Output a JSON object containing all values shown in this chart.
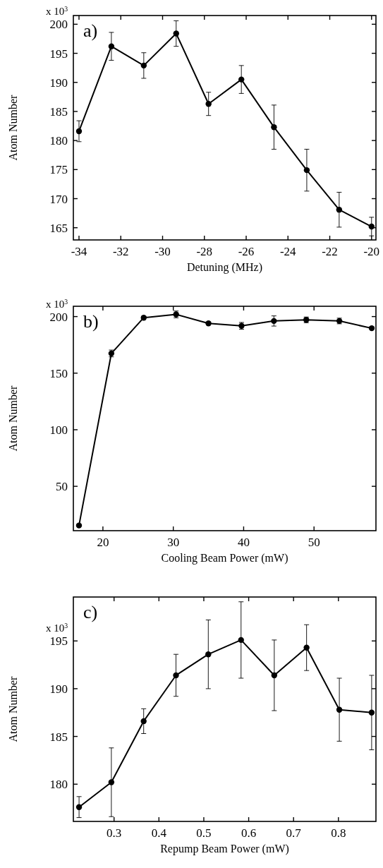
{
  "chart_data": [
    {
      "type": "line",
      "xlabel": "Detuning (MHz)",
      "ylabel": "Atom Number",
      "annotations": [
        "a)",
        "x 10$^{3}$"
      ],
      "marker": "circle",
      "line_style": "solid",
      "grid": false,
      "xlim": [
        -34.27,
        -19.79
      ],
      "ylim": [
        162.9,
        201.5
      ],
      "xticks": [
        -34,
        -32,
        -30,
        -28,
        -26,
        -24,
        -22,
        -20
      ],
      "yticks": [
        165,
        170,
        175,
        180,
        185,
        190,
        195,
        200
      ],
      "series": [
        {
          "color": "#000000",
          "x": [
            -34,
            -32.45,
            -30.9,
            -29.35,
            -27.8,
            -26.23,
            -24.67,
            -23.1,
            -21.55,
            -20
          ],
          "values": [
            181.6,
            196.2,
            192.9,
            198.4,
            186.3,
            190.5,
            182.3,
            174.9,
            168.1,
            165.2
          ],
          "errors": [
            1.8,
            2.4,
            2.2,
            2.2,
            2.0,
            2.4,
            3.8,
            3.6,
            3.0,
            1.6
          ]
        }
      ]
    },
    {
      "type": "line",
      "xlabel": "Cooling Beam Power (mW)",
      "ylabel": "Atom Number",
      "annotations": [
        "b)",
        "x 10$^{3}$"
      ],
      "marker": "circle",
      "line_style": "solid",
      "grid": false,
      "xlim": [
        15.8,
        58.8
      ],
      "ylim": [
        10.8,
        209.1
      ],
      "xticks": [
        20,
        30,
        40,
        50
      ],
      "yticks": [
        50,
        100,
        150,
        200
      ],
      "series": [
        {
          "color": "#000000",
          "x": [
            16.6,
            21.2,
            25.8,
            30.4,
            35.0,
            39.7,
            44.3,
            48.9,
            53.6,
            58.2
          ],
          "values": [
            15.4,
            167.4,
            199.0,
            201.9,
            194.0,
            191.8,
            196.1,
            197.1,
            196.1,
            189.7
          ],
          "errors": [
            1,
            3,
            1,
            3,
            1,
            3,
            4.5,
            2.5,
            2.5,
            1
          ]
        }
      ]
    },
    {
      "type": "line",
      "xlabel": "Repump Beam Power (mW)",
      "ylabel": "Atom Number",
      "annotations": [
        "c)",
        "x 10$^{3}$"
      ],
      "marker": "circle",
      "line_style": "solid",
      "grid": false,
      "xlim": [
        0.2093,
        0.8836
      ],
      "ylim": [
        176.1,
        199.6
      ],
      "xticks": [
        0.3,
        0.4,
        0.5,
        0.6,
        0.7,
        0.8
      ],
      "yticks": [
        180,
        185,
        190,
        195
      ],
      "series": [
        {
          "color": "#000000",
          "x": [
            0.222,
            0.294,
            0.366,
            0.438,
            0.51,
            0.583,
            0.657,
            0.729,
            0.802,
            0.874
          ],
          "values": [
            177.6,
            180.2,
            186.6,
            191.4,
            193.6,
            195.1,
            191.4,
            194.3,
            187.8,
            187.5
          ],
          "errors": [
            1.1,
            3.6,
            1.3,
            2.2,
            3.6,
            4.0,
            3.7,
            2.4,
            3.3,
            3.9
          ]
        }
      ]
    }
  ]
}
